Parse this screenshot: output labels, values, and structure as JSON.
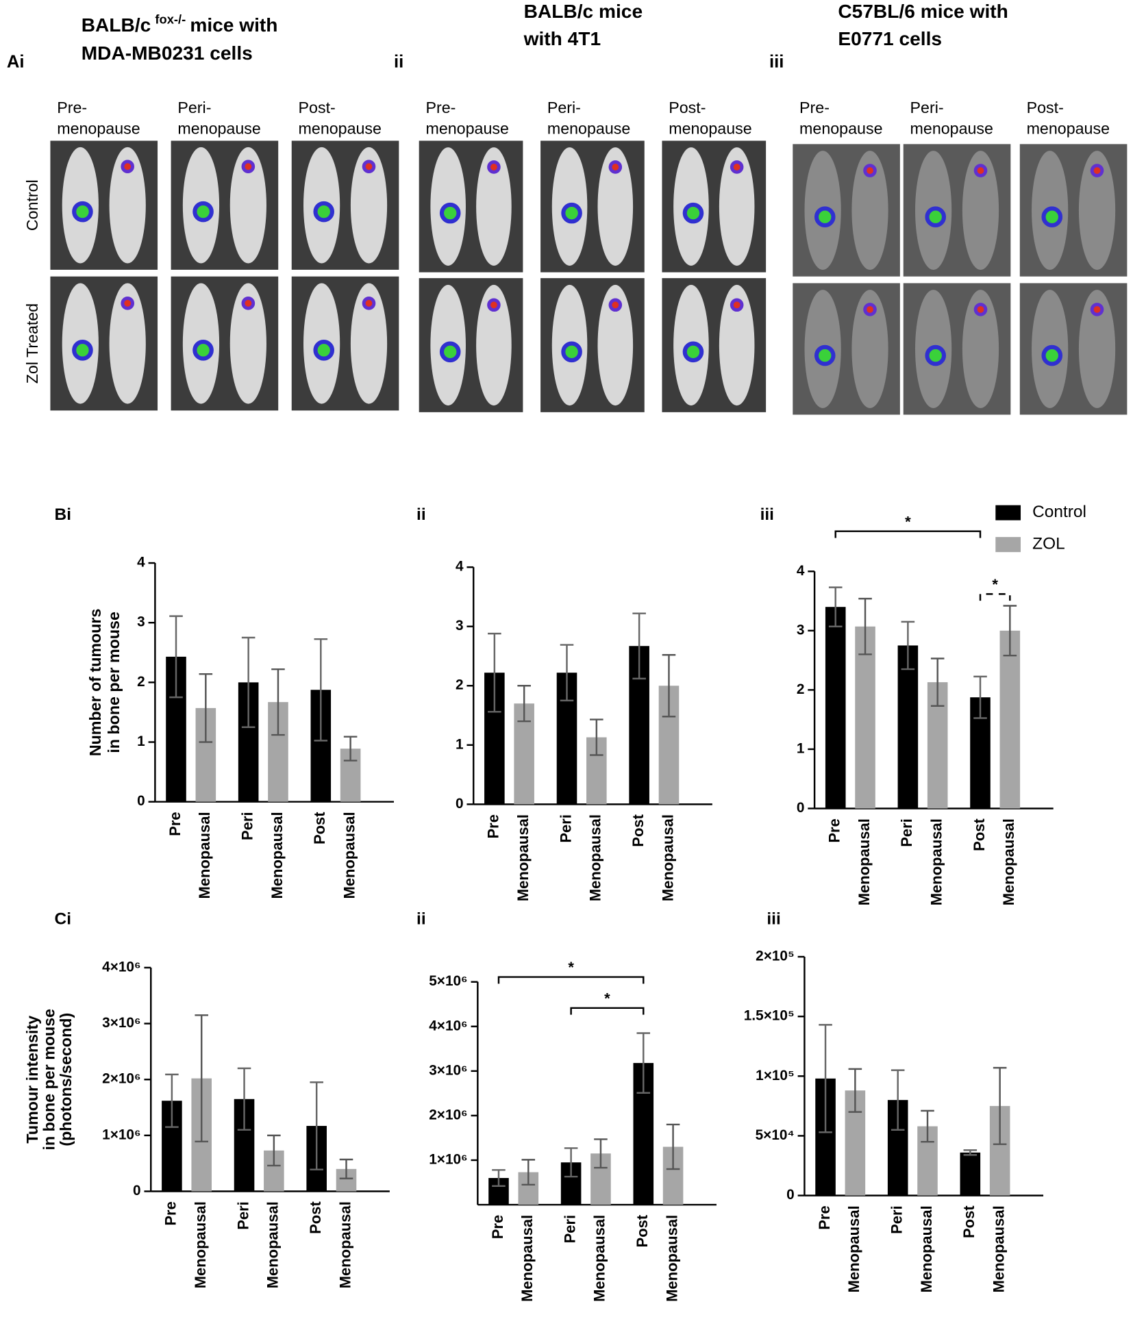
{
  "panel_a": {
    "panels": [
      {
        "label": "Ai",
        "title": [
          "BALB/c",
          "mice with",
          "MDA-MB0231 cells"
        ],
        "title_sup": "fox-/-",
        "columns": [
          [
            "Pre-",
            "menopause"
          ],
          [
            "Peri-",
            "menopause"
          ],
          [
            "Post-",
            "menopause"
          ]
        ],
        "rows": [
          "Control",
          "Zol Treated"
        ]
      },
      {
        "label": "ii",
        "title": [
          "BALB/c mice",
          "with 4T1"
        ],
        "columns": [
          [
            "Pre-",
            "menopause"
          ],
          [
            "Peri-",
            "menopause"
          ],
          [
            "Post-",
            "menopause"
          ]
        ]
      },
      {
        "label": "iii",
        "title": [
          "C57BL/6 mice with",
          "E0771 cells"
        ],
        "columns": [
          [
            "Pre-",
            "menopause"
          ],
          [
            "Peri-",
            "menopause"
          ],
          [
            "Post-",
            "menopause"
          ]
        ]
      }
    ]
  },
  "chart_data": [
    {
      "type": "bar",
      "panel": "Bi",
      "ylabel": [
        "Number of tumours",
        "in bone per mouse"
      ],
      "categories": [
        "Pre",
        "Peri",
        "Post"
      ],
      "category_suffix": "Menopausal",
      "ylim": [
        0,
        4
      ],
      "yticks": [
        0,
        1,
        2,
        3,
        4
      ],
      "series": [
        {
          "color": "#000000",
          "values": [
            2.43,
            2.0,
            1.875
          ],
          "errors": [
            0.68,
            0.75,
            0.85
          ]
        },
        {
          "color": "#a6a6a6",
          "values": [
            1.57,
            1.67,
            0.89
          ],
          "errors": [
            0.57,
            0.55,
            0.2
          ]
        }
      ]
    },
    {
      "type": "bar",
      "panel": "ii",
      "categories": [
        "Pre",
        "Peri",
        "Post"
      ],
      "category_suffix": "Menopausal",
      "ylim": [
        0,
        4
      ],
      "yticks": [
        0,
        1,
        2,
        3,
        4
      ],
      "series": [
        {
          "color": "#000000",
          "values": [
            2.22,
            2.22,
            2.67
          ],
          "errors": [
            0.66,
            0.47,
            0.55
          ]
        },
        {
          "color": "#a6a6a6",
          "values": [
            1.7,
            1.13,
            2.0
          ],
          "errors": [
            0.3,
            0.3,
            0.52
          ]
        }
      ]
    },
    {
      "type": "bar",
      "panel": "iii",
      "categories": [
        "Pre",
        "Peri",
        "Post"
      ],
      "category_suffix": "Menopausal",
      "ylim": [
        0,
        4
      ],
      "yticks": [
        0,
        1,
        2,
        3,
        4
      ],
      "series": [
        {
          "name": "Control",
          "color": "#000000",
          "values": [
            3.4,
            2.75,
            1.875
          ],
          "errors": [
            0.33,
            0.4,
            0.35
          ]
        },
        {
          "name": "ZOL",
          "color": "#a6a6a6",
          "values": [
            3.07,
            2.13,
            3.0
          ],
          "errors": [
            0.47,
            0.4,
            0.42
          ]
        }
      ],
      "annotations": [
        {
          "text": "*",
          "between": [
            [
              0,
              0
            ],
            [
              2,
              0
            ]
          ],
          "style": "solid"
        },
        {
          "text": "*",
          "between": [
            [
              2,
              0
            ],
            [
              2,
              1
            ]
          ],
          "style": "dashed"
        }
      ]
    },
    {
      "type": "bar",
      "panel": "Ci",
      "ylabel": [
        "Tumour intensity",
        "in bone per mouse",
        "(photons/second)"
      ],
      "categories": [
        "Pre",
        "Peri",
        "Post"
      ],
      "category_suffix": "Menopausal",
      "ylim": [
        0,
        4000000
      ],
      "yticks": [
        0,
        {
          "value": 1000000,
          "label": "1×10⁶"
        },
        {
          "value": 2000000,
          "label": "2×10⁶"
        },
        {
          "value": 3000000,
          "label": "3×10⁶"
        },
        {
          "value": 4000000,
          "label": "4×10⁶"
        }
      ],
      "series": [
        {
          "color": "#000000",
          "values": [
            1620000,
            1650000,
            1170000
          ],
          "errors": [
            470000,
            550000,
            780000
          ]
        },
        {
          "color": "#a6a6a6",
          "values": [
            2020000,
            730000,
            400000
          ],
          "errors": [
            1130000,
            270000,
            170000
          ]
        }
      ]
    },
    {
      "type": "bar",
      "panel": "ii",
      "categories": [
        "Pre",
        "Peri",
        "Post"
      ],
      "category_suffix": "Menopausal",
      "ylim": [
        0,
        5000000
      ],
      "yticks": [
        {
          "value": 1000000,
          "label": "1×10⁶"
        },
        {
          "value": 2000000,
          "label": "2×10⁶"
        },
        {
          "value": 3000000,
          "label": "3×10⁶"
        },
        {
          "value": 4000000,
          "label": "4×10⁶"
        },
        {
          "value": 5000000,
          "label": "5×10⁶"
        }
      ],
      "series": [
        {
          "color": "#000000",
          "values": [
            600000,
            950000,
            3180000
          ],
          "errors": [
            180000,
            320000,
            670000
          ]
        },
        {
          "color": "#a6a6a6",
          "values": [
            730000,
            1150000,
            1300000
          ],
          "errors": [
            280000,
            320000,
            500000
          ]
        }
      ],
      "annotations": [
        {
          "text": "*",
          "between": [
            [
              0,
              0
            ],
            [
              2,
              0
            ]
          ],
          "style": "solid"
        },
        {
          "text": "*",
          "between": [
            [
              1,
              0
            ],
            [
              2,
              0
            ]
          ],
          "style": "solid"
        }
      ]
    },
    {
      "type": "bar",
      "panel": "iii",
      "categories": [
        "Pre",
        "Peri",
        "Post"
      ],
      "category_suffix": "Menopausal",
      "ylim": [
        0,
        200000
      ],
      "yticks": [
        0,
        {
          "value": 50000,
          "label": "5×10⁴"
        },
        {
          "value": 100000,
          "label": "1×10⁵"
        },
        {
          "value": 150000,
          "label": "1.5×10⁵"
        },
        {
          "value": 200000,
          "label": "2×10⁵"
        }
      ],
      "series": [
        {
          "color": "#000000",
          "values": [
            98000,
            80000,
            36000
          ],
          "errors": [
            45000,
            25000,
            2000
          ]
        },
        {
          "color": "#a6a6a6",
          "values": [
            88000,
            58000,
            75000
          ],
          "errors": [
            18000,
            13000,
            32000
          ]
        }
      ]
    }
  ]
}
